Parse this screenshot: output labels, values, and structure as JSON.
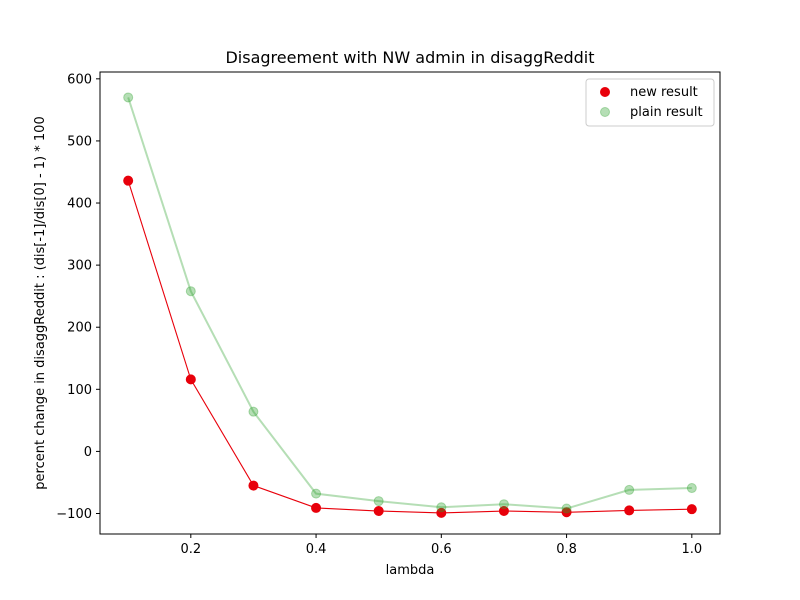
{
  "chart_data": {
    "type": "scatter",
    "title": "Disagreement with NW admin in disaggReddit",
    "xlabel": "lambda",
    "ylabel": "percent change in disaggReddit : (dis[-1]/dis[0] - 1) * 100",
    "xlim": [
      0.055,
      1.045
    ],
    "ylim": [
      -133,
      611
    ],
    "x_ticks": [
      0.2,
      0.4,
      0.6,
      0.8,
      1.0
    ],
    "x_tick_labels": [
      "0.2",
      "0.4",
      "0.6",
      "0.8",
      "1.0"
    ],
    "y_ticks": [
      -100,
      0,
      100,
      200,
      300,
      400,
      500,
      600
    ],
    "y_tick_labels": [
      "−100",
      "0",
      "100",
      "200",
      "300",
      "400",
      "500",
      "600"
    ],
    "grid": false,
    "legend_position": "top-right",
    "x": [
      0.1,
      0.2,
      0.3,
      0.4,
      0.5,
      0.6,
      0.7,
      0.8,
      0.9,
      1.0
    ],
    "series": [
      {
        "name": "new result",
        "color": "#e8000b",
        "marker_opacity": 1.0,
        "line_opacity": 1.0,
        "values": [
          436,
          116,
          -55,
          -91,
          -96,
          -99,
          -96,
          -98,
          -95,
          -93
        ]
      },
      {
        "name": "plain result",
        "color": "#2ca02c",
        "marker_opacity": 0.35,
        "line_opacity": 0.35,
        "values": [
          570,
          258,
          64,
          -68,
          -80,
          -90,
          -85,
          -92,
          -62,
          -59
        ]
      }
    ]
  }
}
